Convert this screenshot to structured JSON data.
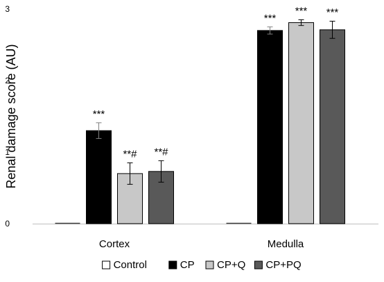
{
  "chart_data": {
    "type": "bar",
    "title": "",
    "xlabel": "",
    "ylabel": "Renal damage score (AU)",
    "ylim": [
      0,
      3
    ],
    "yticks": [
      0,
      1,
      2,
      3
    ],
    "grid": false,
    "legend_position": "bottom",
    "categories": [
      "Cortex",
      "Medulla"
    ],
    "series": [
      {
        "name": "Control",
        "color": "#ffffff",
        "values": [
          0,
          0
        ],
        "errors": [
          0,
          0
        ],
        "annotations": [
          "",
          ""
        ]
      },
      {
        "name": "CP",
        "color": "#000000",
        "values": [
          1.3,
          2.7
        ],
        "errors": [
          0.11,
          0.05
        ],
        "annotations": [
          "***",
          "***"
        ]
      },
      {
        "name": "CP+Q",
        "color": "#c8c8c8",
        "values": [
          0.7,
          2.81
        ],
        "errors": [
          0.15,
          0.04
        ],
        "annotations": [
          "**#",
          "***"
        ]
      },
      {
        "name": "CP+PQ",
        "color": "#595959",
        "values": [
          0.73,
          2.71
        ],
        "errors": [
          0.15,
          0.12
        ],
        "annotations": [
          "**#",
          "***"
        ]
      }
    ]
  }
}
